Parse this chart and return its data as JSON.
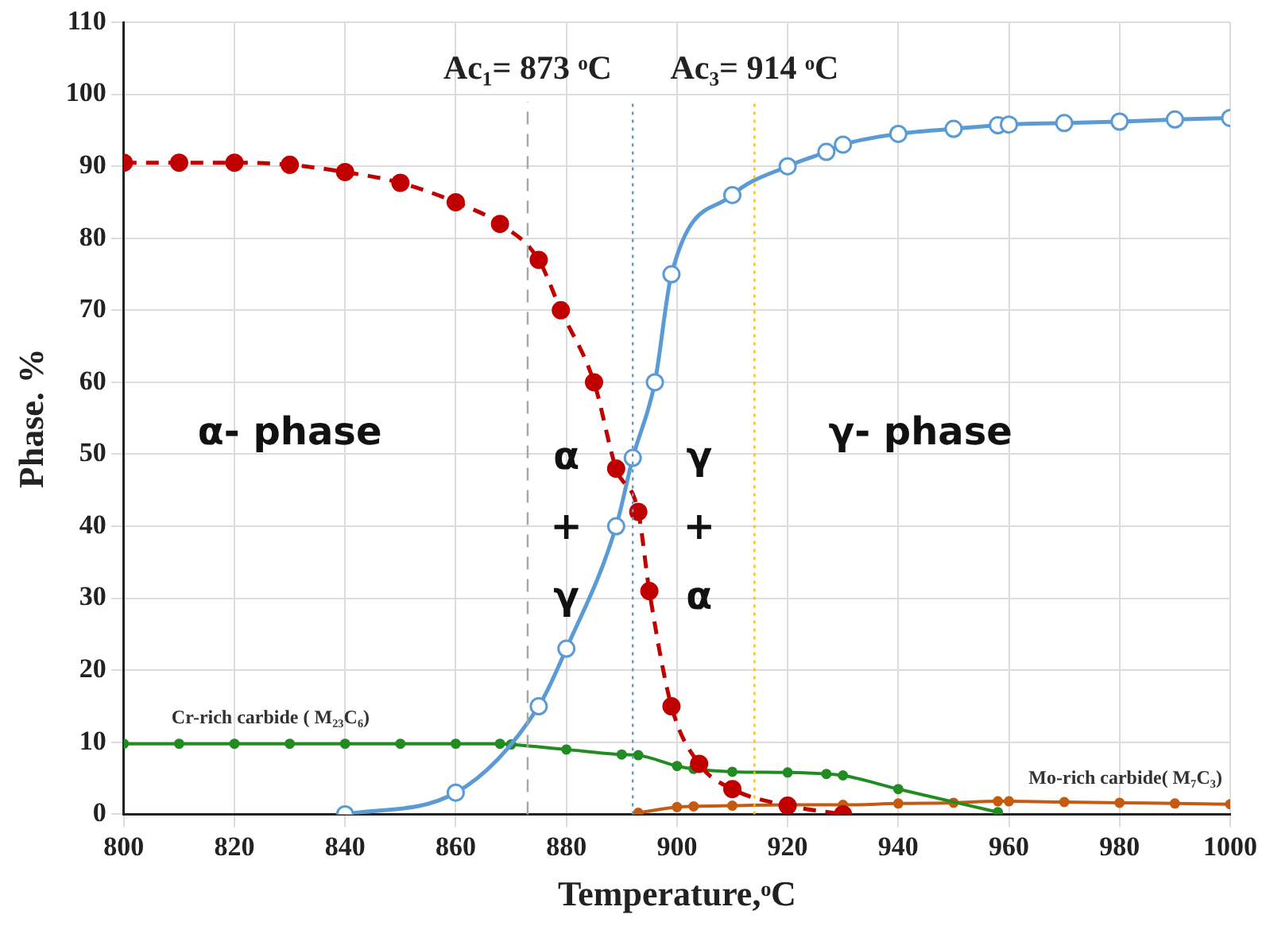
{
  "chart_data": {
    "type": "line",
    "xlabel": "Temperature,ᵒC",
    "ylabel": "Phase. %",
    "xlim": [
      800,
      1000
    ],
    "xticks": [
      800,
      820,
      840,
      860,
      880,
      900,
      920,
      940,
      960,
      980,
      1000
    ],
    "ylim": [
      0,
      110
    ],
    "yticks": [
      0,
      10,
      20,
      30,
      40,
      50,
      60,
      70,
      80,
      90,
      100,
      110
    ],
    "grid": true,
    "legend": false,
    "marker": "circle",
    "series": [
      {
        "color": "#c00000",
        "line_style": "dashed",
        "x": [
          800,
          810,
          820,
          830,
          840,
          850,
          860,
          868,
          875,
          879,
          885,
          889,
          893,
          895,
          899,
          904,
          910,
          920,
          930
        ],
        "values": [
          90.5,
          90.5,
          90.5,
          90.2,
          89.2,
          87.7,
          85,
          82,
          77,
          70,
          60,
          48,
          42,
          31,
          15,
          7,
          3.5,
          1.2,
          0
        ]
      },
      {
        "color": "#5b9bd5",
        "line_style": "solid",
        "x": [
          840,
          860,
          875,
          880,
          889,
          892,
          896,
          899,
          910,
          920,
          927,
          930,
          940,
          950,
          958,
          960,
          970,
          980,
          990,
          1000
        ],
        "values": [
          0,
          3,
          15,
          23,
          40,
          49.5,
          60,
          75,
          86,
          90,
          92,
          93,
          94.5,
          95.2,
          95.7,
          95.8,
          96,
          96.2,
          96.5,
          96.7
        ]
      },
      {
        "name": "Cr-rich carbide ( M₂₃C₆)",
        "color": "#228b22",
        "line_style": "solid",
        "x": [
          800,
          810,
          820,
          830,
          840,
          850,
          860,
          868,
          870,
          880,
          890,
          893,
          900,
          903,
          910,
          920,
          927,
          930,
          940,
          958
        ],
        "values": [
          9.8,
          9.8,
          9.8,
          9.8,
          9.8,
          9.8,
          9.8,
          9.8,
          9.7,
          9,
          8.3,
          8.2,
          6.7,
          6.3,
          5.9,
          5.8,
          5.6,
          5.4,
          3.5,
          0.3
        ]
      },
      {
        "name": "Mo-rich carbide( M₇C₃)",
        "color": "#c55a11",
        "line_style": "solid",
        "x": [
          893,
          900,
          903,
          910,
          920,
          930,
          940,
          950,
          958,
          960,
          970,
          980,
          990,
          1000
        ],
        "values": [
          0.2,
          1,
          1.1,
          1.2,
          1.3,
          1.3,
          1.5,
          1.6,
          1.8,
          1.8,
          1.7,
          1.6,
          1.5,
          1.4
        ]
      }
    ],
    "ref_lines": [
      {
        "axis": "x",
        "value": 873,
        "label": "Ac₁= 873 ᵒC",
        "color": "#a6a6a6",
        "line_style": "dashed"
      },
      {
        "axis": "x",
        "value": 892,
        "color": "#5b9bd5",
        "line_style": "dotted"
      },
      {
        "axis": "x",
        "value": 914,
        "label": "Ac₃= 914 ᵒC",
        "color": "#ffc000",
        "line_style": "dotted"
      }
    ],
    "annotations": [
      "α- phase",
      "α + γ",
      "γ + α",
      "γ- phase"
    ]
  }
}
